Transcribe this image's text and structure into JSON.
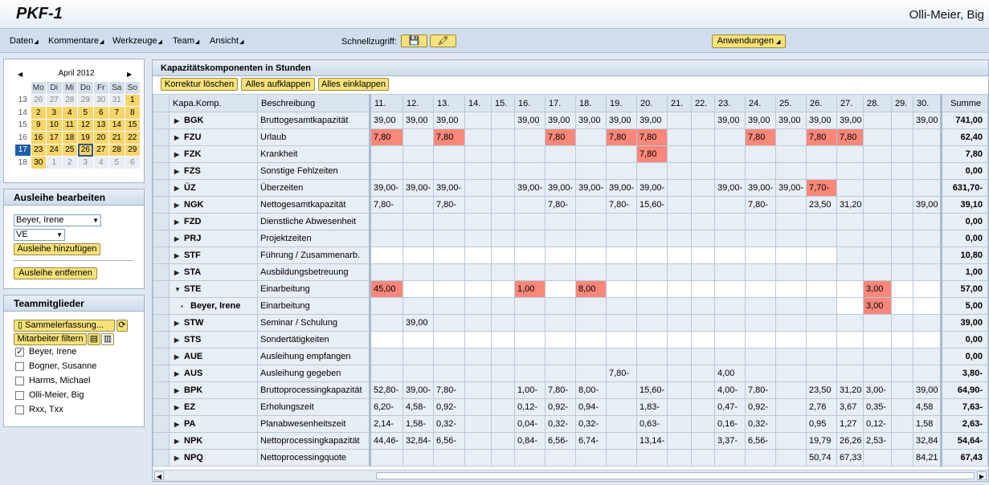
{
  "app": {
    "title": "PKF-1",
    "user": "Olli-Meier, Big"
  },
  "menu": [
    "Daten",
    "Kommentare",
    "Werkzeuge",
    "Team",
    "Ansicht"
  ],
  "quick": {
    "label": "Schnellzugriff:",
    "btn1": "💾",
    "btn2": "🖍"
  },
  "anwendungen": "Anwendungen",
  "calendar": {
    "month": "April 2012",
    "headers": [
      "",
      "Mo",
      "Di",
      "Mi",
      "Do",
      "Fr",
      "Sa",
      "So"
    ],
    "weeks": [
      {
        "wk": "13",
        "days": [
          [
            "26",
            "o"
          ],
          [
            "27",
            "o"
          ],
          [
            "28",
            "o"
          ],
          [
            "29",
            "o"
          ],
          [
            "30",
            "o"
          ],
          [
            "31",
            "o"
          ],
          [
            "1",
            "d"
          ]
        ]
      },
      {
        "wk": "14",
        "days": [
          [
            "2",
            "d"
          ],
          [
            "3",
            "d"
          ],
          [
            "4",
            "d"
          ],
          [
            "5",
            "d"
          ],
          [
            "6",
            "d"
          ],
          [
            "7",
            "d"
          ],
          [
            "8",
            "d"
          ]
        ]
      },
      {
        "wk": "15",
        "days": [
          [
            "9",
            "d"
          ],
          [
            "10",
            "d"
          ],
          [
            "11",
            "d"
          ],
          [
            "12",
            "d"
          ],
          [
            "13",
            "d"
          ],
          [
            "14",
            "d"
          ],
          [
            "15",
            "d"
          ]
        ]
      },
      {
        "wk": "16",
        "days": [
          [
            "16",
            "d"
          ],
          [
            "17",
            "d"
          ],
          [
            "18",
            "d"
          ],
          [
            "19",
            "d"
          ],
          [
            "20",
            "d"
          ],
          [
            "21",
            "d"
          ],
          [
            "22",
            "d"
          ]
        ]
      },
      {
        "wk": "17",
        "days": [
          [
            "23",
            "d"
          ],
          [
            "24",
            "d"
          ],
          [
            "25",
            "d"
          ],
          [
            "26",
            "today"
          ],
          [
            "27",
            "d"
          ],
          [
            "28",
            "d"
          ],
          [
            "29",
            "d"
          ]
        ]
      },
      {
        "wk": "18",
        "days": [
          [
            "30",
            "d"
          ],
          [
            "1",
            "o"
          ],
          [
            "2",
            "o"
          ],
          [
            "3",
            "o"
          ],
          [
            "4",
            "o"
          ],
          [
            "5",
            "o"
          ],
          [
            "6",
            "o"
          ]
        ]
      }
    ]
  },
  "ausleihe": {
    "title": "Ausleihe bearbeiten",
    "person": "Beyer, Irene",
    "type": "VE",
    "add": "Ausleihe hinzufügen",
    "remove": "Ausleihe entfernen"
  },
  "team": {
    "title": "Teammitglieder",
    "summary": "Sammelerfassung...",
    "filter": "Mitarbeiter filtern",
    "members": [
      {
        "name": "Beyer, Irene",
        "checked": "✓"
      },
      {
        "name": "Bogner, Susanne",
        "checked": ""
      },
      {
        "name": "Harms, Michael",
        "checked": ""
      },
      {
        "name": "Olli-Meier, Big",
        "checked": ""
      },
      {
        "name": "Rxx, Txx",
        "checked": ""
      }
    ]
  },
  "main": {
    "title": "Kapazitätskomponenten in Stunden",
    "buttons": [
      "Korrektur löschen",
      "Alles aufklappen",
      "Alles einklappen"
    ],
    "col_code": "Kapa.Komp.",
    "col_desc": "Beschreibung",
    "col_sum": "Summe",
    "days": [
      "11.",
      "12.",
      "13.",
      "14.",
      "15.",
      "16.",
      "17.",
      "18.",
      "19.",
      "20.",
      "21.",
      "22.",
      "23.",
      "24.",
      "25.",
      "26.",
      "27.",
      "28.",
      "29.",
      "30."
    ],
    "rows": [
      {
        "code": "BGK",
        "desc": "Bruttogesamtkapazität",
        "tri": "▶",
        "vals": [
          "39,00",
          "39,00",
          "39,00",
          "",
          "",
          "39,00",
          "39,00",
          "39,00",
          "39,00",
          "39,00",
          "",
          "",
          "39,00",
          "39,00",
          "39,00",
          "39,00",
          "39,00",
          "",
          "",
          "39,00"
        ],
        "sum": "741,00"
      },
      {
        "code": "FZU",
        "desc": "Urlaub",
        "tri": "▶",
        "vals": [
          "7,80",
          "",
          "7,80",
          "",
          "",
          "",
          "7,80",
          "",
          "7,80",
          "7,80",
          "",
          "",
          "",
          "7,80",
          "",
          "7,80",
          "7,80",
          "",
          "",
          ""
        ],
        "red": [
          0,
          2,
          6,
          8,
          9,
          13,
          15,
          16
        ],
        "sum": "62,40"
      },
      {
        "code": "FZK",
        "desc": "Krankheit",
        "tri": "▶",
        "vals": [
          "",
          "",
          "",
          "",
          "",
          "",
          "",
          "",
          "",
          "7,80",
          "",
          "",
          "",
          "",
          "",
          "",
          "",
          "",
          "",
          ""
        ],
        "red": [
          9
        ],
        "sum": "7,80"
      },
      {
        "code": "FZS",
        "desc": "Sonstige Fehlzeiten",
        "tri": "▶",
        "vals": [
          "",
          "",
          "",
          "",
          "",
          "",
          "",
          "",
          "",
          "",
          "",
          "",
          "",
          "",
          "",
          "",
          "",
          "",
          "",
          ""
        ],
        "sum": "0,00"
      },
      {
        "code": "ÜZ",
        "desc": "Überzeiten",
        "tri": "▶",
        "vals": [
          "39,00-",
          "39,00-",
          "39,00-",
          "",
          "",
          "39,00-",
          "39,00-",
          "39,00-",
          "39,00-",
          "39,00-",
          "",
          "",
          "39,00-",
          "39,00-",
          "39,00-",
          "7,70-",
          "",
          "",
          "",
          ""
        ],
        "red": [
          15
        ],
        "sum": "631,70-"
      },
      {
        "code": "NGK",
        "desc": "Nettogesamtkapazität",
        "tri": "▶",
        "vals": [
          "7,80-",
          "",
          "7,80-",
          "",
          "",
          "",
          "7,80-",
          "",
          "7,80-",
          "15,60-",
          "",
          "",
          "",
          "7,80-",
          "",
          "23,50",
          "31,20",
          "",
          "",
          "39,00"
        ],
        "sum": "39,10"
      },
      {
        "code": "FZD",
        "desc": "Dienstliche Abwesenheit",
        "tri": "▶",
        "vals": [
          "",
          "",
          "",
          "",
          "",
          "",
          "",
          "",
          "",
          "",
          "",
          "",
          "",
          "",
          "",
          "",
          "",
          "",
          "",
          ""
        ],
        "sum": "0,00"
      },
      {
        "code": "PRJ",
        "desc": "Projektzeiten",
        "tri": "▶",
        "vals": [
          "",
          "",
          "",
          "",
          "",
          "",
          "",
          "",
          "",
          "",
          "",
          "",
          "",
          "",
          "",
          "",
          "",
          "",
          "",
          ""
        ],
        "sum": "0,00"
      },
      {
        "code": "STF",
        "desc": "Führung / Zusammenarb.",
        "tri": "▶",
        "vals": [
          "",
          "",
          "",
          "",
          "",
          "",
          "",
          "",
          "",
          "",
          "",
          "",
          "",
          "",
          "",
          "",
          "",
          "",
          "",
          ""
        ],
        "white": "0-15",
        "sum": "10,80"
      },
      {
        "code": "STA",
        "desc": "Ausbildungsbetreuung",
        "tri": "▶",
        "vals": [
          "",
          "",
          "",
          "",
          "",
          "",
          "",
          "",
          "",
          "",
          "",
          "",
          "",
          "",
          "",
          "",
          "",
          "",
          "",
          ""
        ],
        "sum": "1,00"
      },
      {
        "code": "STE",
        "desc": "Einarbeitung",
        "tri": "▼",
        "vals": [
          "45,00",
          "",
          "",
          "",
          "",
          "1,00",
          "",
          "8,00",
          "",
          "",
          "",
          "",
          "",
          "",
          "",
          "",
          "",
          "3,00",
          "",
          ""
        ],
        "red": [
          0,
          5,
          7,
          17
        ],
        "white": "0-19",
        "sum": "57,00"
      },
      {
        "code": "Beyer, Irene",
        "desc": "Einarbeitung",
        "tri": "▪",
        "sub": true,
        "vals": [
          "",
          "",
          "",
          "",
          "",
          "",
          "",
          "",
          "",
          "",
          "",
          "",
          "",
          "",
          "",
          "",
          "",
          "3,00",
          "",
          ""
        ],
        "red": [
          17
        ],
        "white": "16-19",
        "sum": "5,00"
      },
      {
        "code": "STW",
        "desc": "Seminar / Schulung",
        "tri": "▶",
        "vals": [
          "",
          "39,00",
          "",
          "",
          "",
          "",
          "",
          "",
          "",
          "",
          "",
          "",
          "",
          "",
          "",
          "",
          "",
          "",
          "",
          ""
        ],
        "sum": "39,00"
      },
      {
        "code": "STS",
        "desc": "Sondertätigkeiten",
        "tri": "▶",
        "vals": [
          "",
          "",
          "",
          "",
          "",
          "",
          "",
          "",
          "",
          "",
          "",
          "",
          "",
          "",
          "",
          "",
          "",
          "",
          "",
          ""
        ],
        "white": "0-19",
        "sum": "0,00"
      },
      {
        "code": "AUE",
        "desc": "Ausleihung empfangen",
        "tri": "▶",
        "vals": [
          "",
          "",
          "",
          "",
          "",
          "",
          "",
          "",
          "",
          "",
          "",
          "",
          "",
          "",
          "",
          "",
          "",
          "",
          "",
          ""
        ],
        "sum": "0,00"
      },
      {
        "code": "AUS",
        "desc": "Ausleihung gegeben",
        "tri": "▶",
        "vals": [
          "",
          "",
          "",
          "",
          "",
          "",
          "",
          "",
          "7,80-",
          "",
          "",
          "",
          "4,00",
          "",
          "",
          "",
          "",
          "",
          "",
          ""
        ],
        "sum": "3,80-"
      },
      {
        "code": "BPK",
        "desc": "Bruttoprocessingkapazität",
        "tri": "▶",
        "vals": [
          "52,80-",
          "39,00-",
          "7,80-",
          "",
          "",
          "1,00-",
          "7,80-",
          "8,00-",
          "",
          "15,60-",
          "",
          "",
          "4,00-",
          "7,80-",
          "",
          "23,50",
          "31,20",
          "3,00-",
          "",
          "39,00"
        ],
        "sum": "64,90-"
      },
      {
        "code": "EZ",
        "desc": "Erholungszeit",
        "tri": "▶",
        "vals": [
          "6,20-",
          "4,58-",
          "0,92-",
          "",
          "",
          "0,12-",
          "0,92-",
          "0,94-",
          "",
          "1,83-",
          "",
          "",
          "0,47-",
          "0,92-",
          "",
          "2,76",
          "3,67",
          "0,35-",
          "",
          "4,58"
        ],
        "sum": "7,63-"
      },
      {
        "code": "PA",
        "desc": "Planabwesenheitszeit",
        "tri": "▶",
        "vals": [
          "2,14-",
          "1,58-",
          "0,32-",
          "",
          "",
          "0,04-",
          "0,32-",
          "0,32-",
          "",
          "0,63-",
          "",
          "",
          "0,16-",
          "0,32-",
          "",
          "0,95",
          "1,27",
          "0,12-",
          "",
          "1,58"
        ],
        "sum": "2,63-"
      },
      {
        "code": "NPK",
        "desc": "Nettoprocessingkapazität",
        "tri": "▶",
        "vals": [
          "44,46-",
          "32,84-",
          "6,56-",
          "",
          "",
          "0,84-",
          "6,56-",
          "6,74-",
          "",
          "13,14-",
          "",
          "",
          "3,37-",
          "6,56-",
          "",
          "19,79",
          "26,26",
          "2,53-",
          "",
          "32,84"
        ],
        "sum": "54,64-"
      },
      {
        "code": "NPQ",
        "desc": "Nettoprocessingquote",
        "tri": "▶",
        "vals": [
          "",
          "",
          "",
          "",
          "",
          "",
          "",
          "",
          "",
          "",
          "",
          "",
          "",
          "",
          "",
          "50,74",
          "67,33",
          "",
          "",
          "84,21"
        ],
        "sum": "67,43"
      }
    ]
  }
}
